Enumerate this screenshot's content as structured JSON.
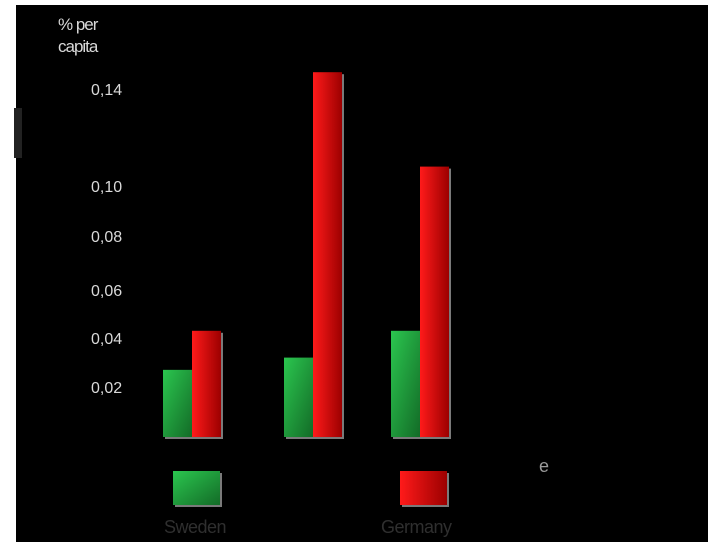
{
  "chart_data": {
    "type": "bar",
    "ylabel": [
      "% per",
      "capita"
    ],
    "y_ticks": [
      "0,02",
      "0,04",
      "0,06",
      "0,08",
      "0,10",
      "0,14"
    ],
    "y_tick_values": [
      0.02,
      0.04,
      0.06,
      0.08,
      0.1,
      0.14
    ],
    "categories": [
      "",
      "",
      ""
    ],
    "series": [
      {
        "name": "Sweden",
        "color": "#1e9a3a",
        "values": [
          0.027,
          0.032,
          0.043
        ]
      },
      {
        "name": "Germany",
        "color": "#e80000",
        "values": [
          0.043,
          0.147,
          0.108
        ]
      }
    ],
    "ylim": [
      0,
      0.15
    ],
    "legend_position": "bottom",
    "annotation": "e",
    "grid": false
  }
}
